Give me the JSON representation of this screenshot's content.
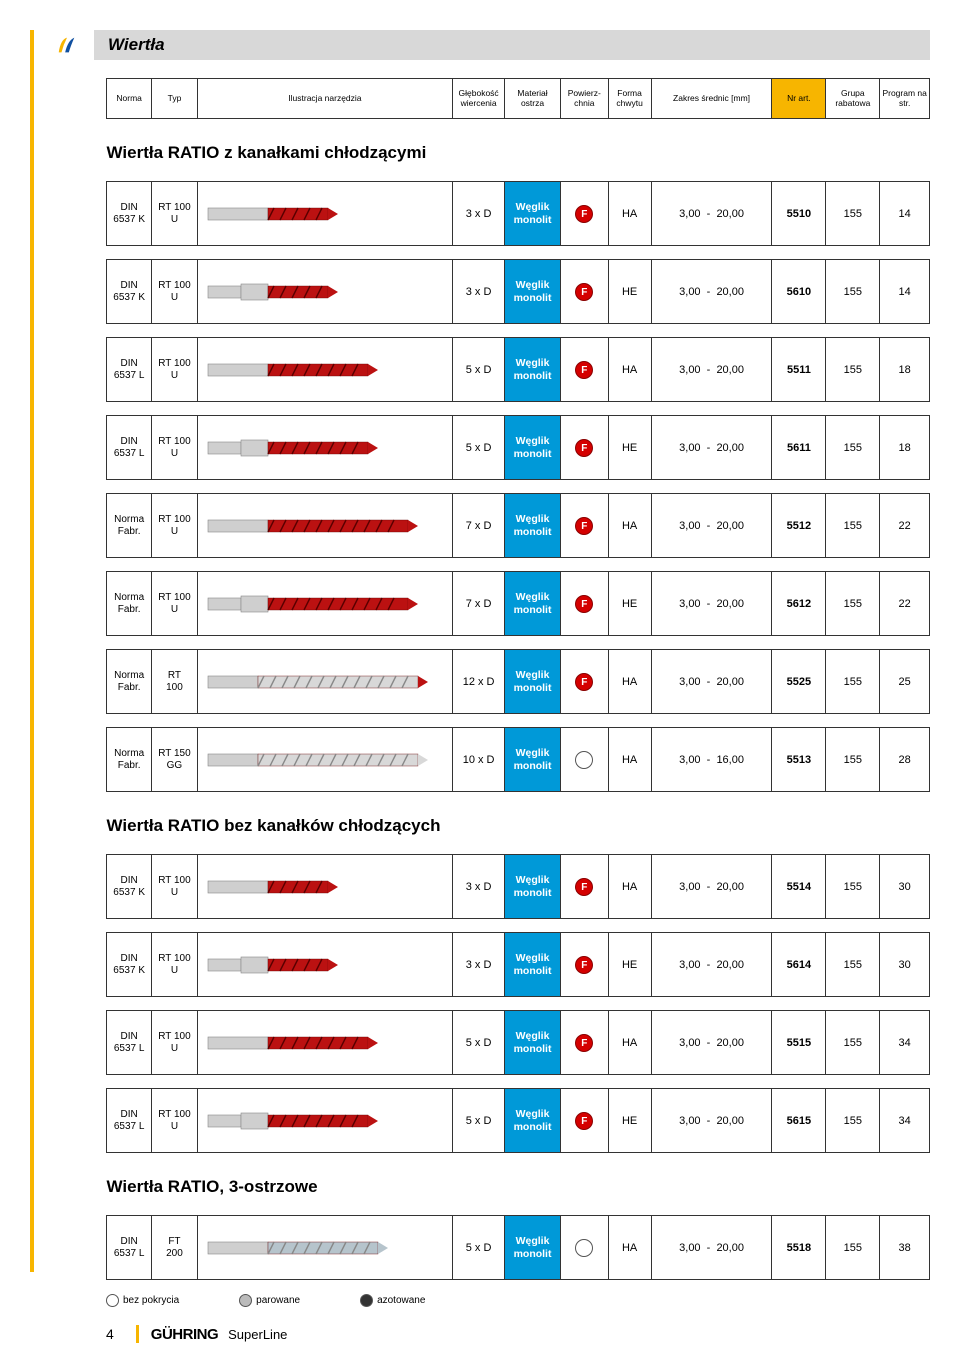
{
  "title": "Wiertła",
  "page_number": "4",
  "brand_text": "GÜHRING",
  "brand_sub": "SuperLine",
  "header": {
    "norma": "Norma",
    "typ": "Typ",
    "illus": "Ilustracja narzędzia",
    "depth": "Głębokość wiercenia",
    "material": "Materiał ostrza",
    "surface": "Powierz-chnia",
    "chuck": "Forma chwytu",
    "range": "Zakres średnic [mm]",
    "art": "Nr art.",
    "group": "Grupa rabatowa",
    "page": "Program na str."
  },
  "sections": [
    {
      "title": "Wiertła RATIO z kanałkami chłodzącymi",
      "rows": [
        {
          "norma": "DIN 6537 K",
          "typ": "RT 100 U",
          "depth": "3 x D",
          "mat": "Węglik monolit",
          "surf": "F",
          "chuck": "HA",
          "rmin": "3,00",
          "rmax": "20,00",
          "art": "5510",
          "grp": "155",
          "pg": "14",
          "tool": "short-red"
        },
        {
          "norma": "DIN 6537 K",
          "typ": "RT 100 U",
          "depth": "3 x D",
          "mat": "Węglik monolit",
          "surf": "F",
          "chuck": "HE",
          "rmin": "3,00",
          "rmax": "20,00",
          "art": "5610",
          "grp": "155",
          "pg": "14",
          "tool": "short-red-he"
        },
        {
          "norma": "DIN 6537 L",
          "typ": "RT 100 U",
          "depth": "5 x D",
          "mat": "Węglik monolit",
          "surf": "F",
          "chuck": "HA",
          "rmin": "3,00",
          "rmax": "20,00",
          "art": "5511",
          "grp": "155",
          "pg": "18",
          "tool": "med-red"
        },
        {
          "norma": "DIN 6537 L",
          "typ": "RT 100 U",
          "depth": "5 x D",
          "mat": "Węglik monolit",
          "surf": "F",
          "chuck": "HE",
          "rmin": "3,00",
          "rmax": "20,00",
          "art": "5611",
          "grp": "155",
          "pg": "18",
          "tool": "med-red-he"
        },
        {
          "norma": "Norma Fabr.",
          "typ": "RT 100 U",
          "depth": "7 x D",
          "mat": "Węglik monolit",
          "surf": "F",
          "chuck": "HA",
          "rmin": "3,00",
          "rmax": "20,00",
          "art": "5512",
          "grp": "155",
          "pg": "22",
          "tool": "long-red"
        },
        {
          "norma": "Norma Fabr.",
          "typ": "RT 100 U",
          "depth": "7 x D",
          "mat": "Węglik monolit",
          "surf": "F",
          "chuck": "HE",
          "rmin": "3,00",
          "rmax": "20,00",
          "art": "5612",
          "grp": "155",
          "pg": "22",
          "tool": "long-red-he"
        },
        {
          "norma": "Norma Fabr.",
          "typ": "RT 100",
          "depth": "12 x D",
          "mat": "Węglik monolit",
          "surf": "F",
          "chuck": "HA",
          "rmin": "3,00",
          "rmax": "20,00",
          "art": "5525",
          "grp": "155",
          "pg": "25",
          "tool": "xl-silver-tip"
        },
        {
          "norma": "Norma Fabr.",
          "typ": "RT 150 GG",
          "depth": "10 x D",
          "mat": "Węglik monolit",
          "surf": "O",
          "chuck": "HA",
          "rmin": "3,00",
          "rmax": "16,00",
          "art": "5513",
          "grp": "155",
          "pg": "28",
          "tool": "xl-silver"
        }
      ]
    },
    {
      "title": "Wiertła RATIO bez kanałków chłodzących",
      "rows": [
        {
          "norma": "DIN 6537 K",
          "typ": "RT 100 U",
          "depth": "3 x D",
          "mat": "Węglik monolit",
          "surf": "F",
          "chuck": "HA",
          "rmin": "3,00",
          "rmax": "20,00",
          "art": "5514",
          "grp": "155",
          "pg": "30",
          "tool": "short-red"
        },
        {
          "norma": "DIN 6537 K",
          "typ": "RT 100 U",
          "depth": "3 x D",
          "mat": "Węglik monolit",
          "surf": "F",
          "chuck": "HE",
          "rmin": "3,00",
          "rmax": "20,00",
          "art": "5614",
          "grp": "155",
          "pg": "30",
          "tool": "short-red-he"
        },
        {
          "norma": "DIN 6537 L",
          "typ": "RT 100 U",
          "depth": "5 x D",
          "mat": "Węglik monolit",
          "surf": "F",
          "chuck": "HA",
          "rmin": "3,00",
          "rmax": "20,00",
          "art": "5515",
          "grp": "155",
          "pg": "34",
          "tool": "med-red"
        },
        {
          "norma": "DIN 6537 L",
          "typ": "RT 100 U",
          "depth": "5 x D",
          "mat": "Węglik monolit",
          "surf": "F",
          "chuck": "HE",
          "rmin": "3,00",
          "rmax": "20,00",
          "art": "5615",
          "grp": "155",
          "pg": "34",
          "tool": "med-red-he"
        }
      ]
    },
    {
      "title": "Wiertła RATIO, 3-ostrzowe",
      "rows": [
        {
          "norma": "DIN 6537 L",
          "typ": "FT 200",
          "depth": "5 x D",
          "mat": "Węglik monolit",
          "surf": "O",
          "chuck": "HA",
          "rmin": "3,00",
          "rmax": "20,00",
          "art": "5518",
          "grp": "155",
          "pg": "38",
          "tool": "med-silver"
        }
      ]
    }
  ],
  "legend": {
    "l0": "bez pokrycia",
    "l1": "parowane",
    "l2": "azotowane"
  }
}
